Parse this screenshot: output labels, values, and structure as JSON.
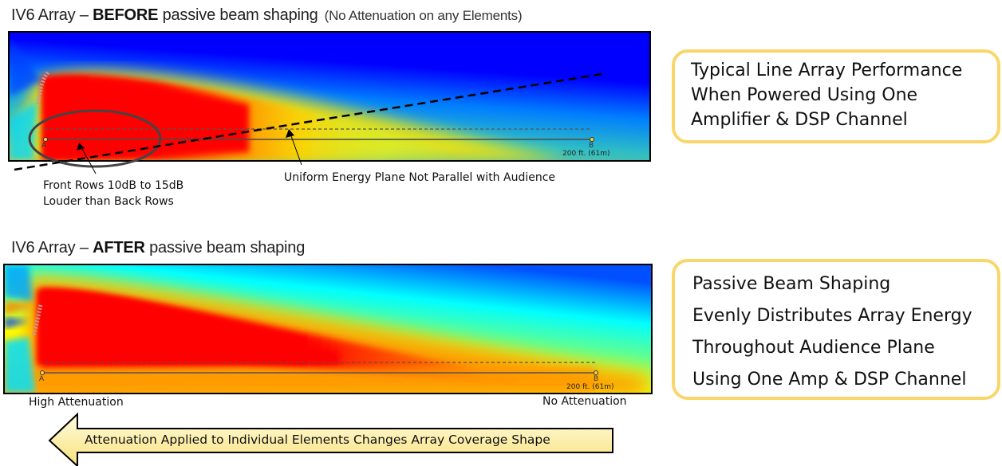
{
  "before": {
    "title_prefix": "IV6 Array – ",
    "title_bold": "BEFORE",
    "title_suffix": " passive beam shaping",
    "title_note": "(No Attenuation on any Elements)",
    "marker_a": "A",
    "marker_b": "B",
    "distance": "200 ft. (61m)",
    "annotation_front_line1": "Front Rows 10dB to 15dB",
    "annotation_front_line2": "Louder than Back Rows",
    "annotation_plane": "Uniform Energy Plane Not Parallel with Audience"
  },
  "after": {
    "title_prefix": "IV6 Array – ",
    "title_bold": "AFTER",
    "title_suffix": " passive beam shaping",
    "marker_a": "A",
    "marker_b": "B",
    "distance": "200 ft. (61m)",
    "label_left": "High Attenuation",
    "label_right": "No Attenuation"
  },
  "callout_top": {
    "lines": [
      "Typical Line Array Performance",
      "When Powered Using One",
      "Amplifier & DSP Channel"
    ]
  },
  "callout_bottom": {
    "lines": [
      "Passive Beam Shaping",
      "Evenly Distributes Array Energy",
      "Throughout Audience Plane",
      "Using One Amp & DSP Channel"
    ]
  },
  "arrow": {
    "text": "Attenuation Applied to Individual Elements Changes Array Coverage Shape",
    "direction": "left"
  },
  "colors": {
    "callout_border": "#f9d66a",
    "arrow_fill_light": "#fffbe0",
    "arrow_fill_dark": "#f8e27a",
    "heat_red": "#ff0000",
    "heat_yellow": "#ffff00",
    "heat_cyan": "#00ffff",
    "heat_blue": "#0000ff"
  }
}
